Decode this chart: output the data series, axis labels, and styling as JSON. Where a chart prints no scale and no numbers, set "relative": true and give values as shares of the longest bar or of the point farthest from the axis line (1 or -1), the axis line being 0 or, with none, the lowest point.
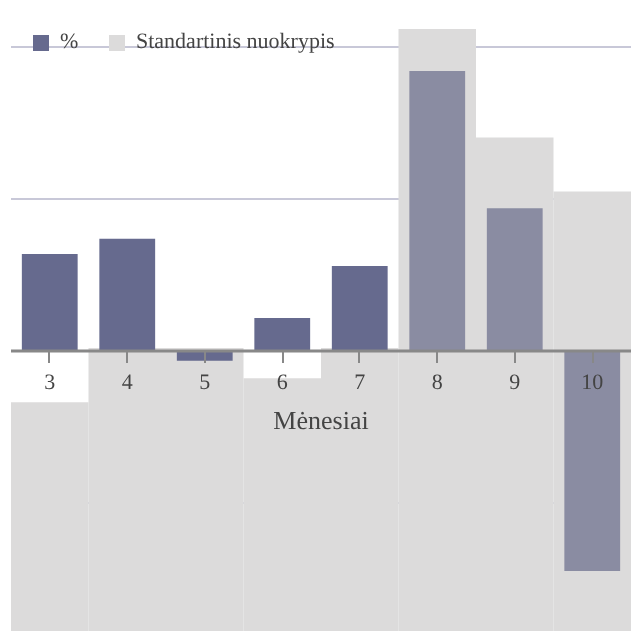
{
  "chart_data": {
    "type": "bar",
    "xlabel": "Mėnesiai",
    "categories": [
      "3",
      "4",
      "5",
      "6",
      "7",
      "8",
      "9",
      "10"
    ],
    "relative": true,
    "legend": "top",
    "grid": "y",
    "series": [
      {
        "name": "Standartinis nuokrypis",
        "color": "#dcdbdb",
        "axis": "y2",
        "values": [
          0.38,
          0.47,
          0.47,
          0.42,
          0.47,
          1,
          0.82,
          0.73
        ]
      },
      {
        "name": "%",
        "color": "#666a8e",
        "colors": [
          "#666a8e",
          "#666a8e",
          "#666a8e",
          "#666a8e",
          "#666a8e",
          "#8a8ca2",
          "#8a8ca2",
          "#8a8ca2"
        ],
        "values": [
          0.32,
          0.37,
          -0.03,
          0.11,
          0.28,
          0.92,
          0.47,
          -0.72
        ]
      }
    ]
  }
}
